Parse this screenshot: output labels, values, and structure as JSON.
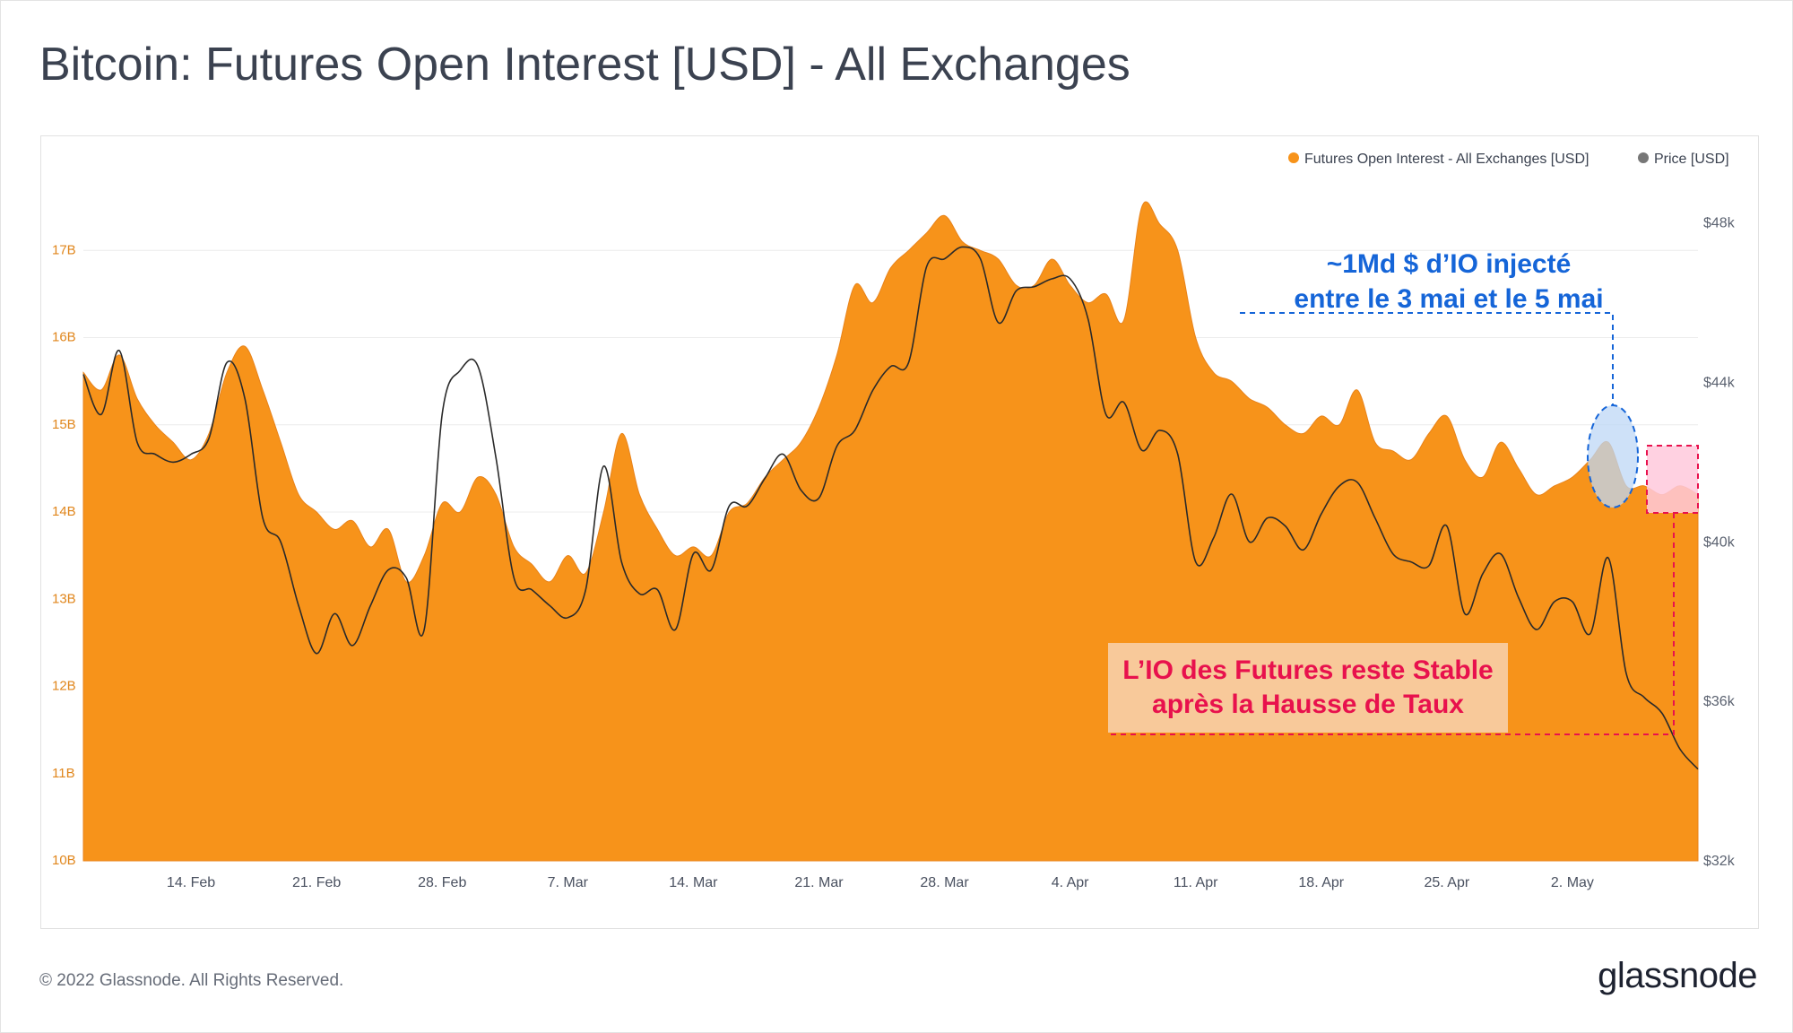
{
  "title": "Bitcoin: Futures Open Interest [USD] - All Exchanges",
  "footer": "© 2022 Glassnode. All Rights Reserved.",
  "brand": "glassnode",
  "colors": {
    "open_interest_fill": "#f7931a",
    "price_line": "#2a2a2a",
    "axis_left": "#e0861c",
    "axis_right": "#5b6270",
    "annotation_blue": "#1565d8",
    "annotation_pink": "#e8114d",
    "pink_box_fill": "#ffc9dc",
    "note_box_fill": "#f8c99a",
    "blue_ellipse_fill": "#bdd7f5"
  },
  "chart_data": {
    "type": "area",
    "x_unit": "date 2022",
    "x_ticks": [
      {
        "x": "2022-02-14",
        "label": "14. Feb"
      },
      {
        "x": "2022-02-21",
        "label": "21. Feb"
      },
      {
        "x": "2022-02-28",
        "label": "28. Feb"
      },
      {
        "x": "2022-03-07",
        "label": "7. Mar"
      },
      {
        "x": "2022-03-14",
        "label": "14. Mar"
      },
      {
        "x": "2022-03-21",
        "label": "21. Mar"
      },
      {
        "x": "2022-03-28",
        "label": "28. Mar"
      },
      {
        "x": "2022-04-04",
        "label": "4. Apr"
      },
      {
        "x": "2022-04-11",
        "label": "11. Apr"
      },
      {
        "x": "2022-04-18",
        "label": "18. Apr"
      },
      {
        "x": "2022-04-25",
        "label": "25. Apr"
      },
      {
        "x": "2022-05-02",
        "label": "2. May"
      }
    ],
    "x_range": [
      "2022-02-08",
      "2022-05-09"
    ],
    "y_left": {
      "min": 10,
      "max": 18,
      "ticks": [
        {
          "value": 10,
          "label": "10B"
        },
        {
          "value": 11,
          "label": "11B"
        },
        {
          "value": 12,
          "label": "12B"
        },
        {
          "value": 13,
          "label": "13B"
        },
        {
          "value": 14,
          "label": "14B"
        },
        {
          "value": 15,
          "label": "15B"
        },
        {
          "value": 16,
          "label": "16B"
        },
        {
          "value": 17,
          "label": "17B"
        }
      ]
    },
    "y_right": {
      "min": 32000,
      "max": 49500,
      "ticks": [
        {
          "value": 32000,
          "label": "$32k"
        },
        {
          "value": 36000,
          "label": "$36k"
        },
        {
          "value": 40000,
          "label": "$40k"
        },
        {
          "value": 44000,
          "label": "$44k"
        },
        {
          "value": 48000,
          "label": "$48k"
        }
      ]
    },
    "grid": true,
    "legend_placement": "top-right",
    "series": [
      {
        "name": "Futures Open Interest - All Exchanges [USD]",
        "axis": "left",
        "type": "area",
        "x": [
          "2022-02-08",
          "2022-02-09",
          "2022-02-10",
          "2022-02-11",
          "2022-02-12",
          "2022-02-13",
          "2022-02-14",
          "2022-02-15",
          "2022-02-16",
          "2022-02-17",
          "2022-02-18",
          "2022-02-19",
          "2022-02-20",
          "2022-02-21",
          "2022-02-22",
          "2022-02-23",
          "2022-02-24",
          "2022-02-25",
          "2022-02-26",
          "2022-02-27",
          "2022-02-28",
          "2022-03-01",
          "2022-03-02",
          "2022-03-03",
          "2022-03-04",
          "2022-03-05",
          "2022-03-06",
          "2022-03-07",
          "2022-03-08",
          "2022-03-09",
          "2022-03-10",
          "2022-03-11",
          "2022-03-12",
          "2022-03-13",
          "2022-03-14",
          "2022-03-15",
          "2022-03-16",
          "2022-03-17",
          "2022-03-18",
          "2022-03-19",
          "2022-03-20",
          "2022-03-21",
          "2022-03-22",
          "2022-03-23",
          "2022-03-24",
          "2022-03-25",
          "2022-03-26",
          "2022-03-27",
          "2022-03-28",
          "2022-03-29",
          "2022-03-30",
          "2022-03-31",
          "2022-04-01",
          "2022-04-02",
          "2022-04-03",
          "2022-04-04",
          "2022-04-05",
          "2022-04-06",
          "2022-04-07",
          "2022-04-08",
          "2022-04-09",
          "2022-04-10",
          "2022-04-11",
          "2022-04-12",
          "2022-04-13",
          "2022-04-14",
          "2022-04-15",
          "2022-04-16",
          "2022-04-17",
          "2022-04-18",
          "2022-04-19",
          "2022-04-20",
          "2022-04-21",
          "2022-04-22",
          "2022-04-23",
          "2022-04-24",
          "2022-04-25",
          "2022-04-26",
          "2022-04-27",
          "2022-04-28",
          "2022-04-29",
          "2022-04-30",
          "2022-05-01",
          "2022-05-02",
          "2022-05-03",
          "2022-05-04",
          "2022-05-05",
          "2022-05-06",
          "2022-05-07",
          "2022-05-08",
          "2022-05-09"
        ],
        "values": [
          15.6,
          15.4,
          15.8,
          15.3,
          15.0,
          14.8,
          14.6,
          14.9,
          15.6,
          15.9,
          15.4,
          14.8,
          14.2,
          14.0,
          13.8,
          13.9,
          13.6,
          13.8,
          13.2,
          13.5,
          14.1,
          14.0,
          14.4,
          14.2,
          13.6,
          13.4,
          13.2,
          13.5,
          13.3,
          14.0,
          14.9,
          14.2,
          13.8,
          13.5,
          13.6,
          13.5,
          14.0,
          14.1,
          14.4,
          14.6,
          14.8,
          15.2,
          15.8,
          16.6,
          16.4,
          16.8,
          17.0,
          17.2,
          17.4,
          17.1,
          17.0,
          16.9,
          16.6,
          16.6,
          16.9,
          16.6,
          16.4,
          16.5,
          16.2,
          17.5,
          17.3,
          17.0,
          16.0,
          15.6,
          15.5,
          15.3,
          15.2,
          15.0,
          14.9,
          15.1,
          15.0,
          15.4,
          14.8,
          14.7,
          14.6,
          14.9,
          15.1,
          14.6,
          14.4,
          14.8,
          14.5,
          14.2,
          14.3,
          14.4,
          14.6,
          14.8,
          14.3,
          14.3,
          14.2,
          14.3,
          14.2
        ]
      },
      {
        "name": "Price [USD]",
        "axis": "right",
        "type": "line",
        "x": [
          "2022-02-08",
          "2022-02-09",
          "2022-02-10",
          "2022-02-11",
          "2022-02-12",
          "2022-02-13",
          "2022-02-14",
          "2022-02-15",
          "2022-02-16",
          "2022-02-17",
          "2022-02-18",
          "2022-02-19",
          "2022-02-20",
          "2022-02-21",
          "2022-02-22",
          "2022-02-23",
          "2022-02-24",
          "2022-02-25",
          "2022-02-26",
          "2022-02-27",
          "2022-02-28",
          "2022-03-01",
          "2022-03-02",
          "2022-03-03",
          "2022-03-04",
          "2022-03-05",
          "2022-03-06",
          "2022-03-07",
          "2022-03-08",
          "2022-03-09",
          "2022-03-10",
          "2022-03-11",
          "2022-03-12",
          "2022-03-13",
          "2022-03-14",
          "2022-03-15",
          "2022-03-16",
          "2022-03-17",
          "2022-03-18",
          "2022-03-19",
          "2022-03-20",
          "2022-03-21",
          "2022-03-22",
          "2022-03-23",
          "2022-03-24",
          "2022-03-25",
          "2022-03-26",
          "2022-03-27",
          "2022-03-28",
          "2022-03-29",
          "2022-03-30",
          "2022-03-31",
          "2022-04-01",
          "2022-04-02",
          "2022-04-03",
          "2022-04-04",
          "2022-04-05",
          "2022-04-06",
          "2022-04-07",
          "2022-04-08",
          "2022-04-09",
          "2022-04-10",
          "2022-04-11",
          "2022-04-12",
          "2022-04-13",
          "2022-04-14",
          "2022-04-15",
          "2022-04-16",
          "2022-04-17",
          "2022-04-18",
          "2022-04-19",
          "2022-04-20",
          "2022-04-21",
          "2022-04-22",
          "2022-04-23",
          "2022-04-24",
          "2022-04-25",
          "2022-04-26",
          "2022-04-27",
          "2022-04-28",
          "2022-04-29",
          "2022-04-30",
          "2022-05-01",
          "2022-05-02",
          "2022-05-03",
          "2022-05-04",
          "2022-05-05",
          "2022-05-06",
          "2022-05-07",
          "2022-05-08",
          "2022-05-09"
        ],
        "values": [
          44200,
          43200,
          44800,
          42500,
          42200,
          42000,
          42200,
          42600,
          44500,
          43600,
          40600,
          40000,
          38400,
          37200,
          38200,
          37400,
          38400,
          39300,
          39100,
          37800,
          43200,
          44300,
          44400,
          42100,
          39100,
          38800,
          38400,
          38100,
          38800,
          41900,
          39500,
          38700,
          38800,
          37800,
          39700,
          39300,
          40900,
          40900,
          41600,
          42200,
          41300,
          41100,
          42400,
          42800,
          43800,
          44400,
          44500,
          46900,
          47100,
          47400,
          47100,
          45500,
          46300,
          46400,
          46600,
          46600,
          45600,
          43200,
          43500,
          42300,
          42800,
          42200,
          39500,
          40100,
          41200,
          40000,
          40600,
          40400,
          39800,
          40700,
          41400,
          41500,
          40600,
          39700,
          39500,
          39400,
          40400,
          38200,
          39200,
          39700,
          38600,
          37800,
          38500,
          38500,
          37700,
          39600,
          36700,
          36100,
          35700,
          34800,
          34300
        ]
      }
    ],
    "annotations": [
      {
        "text_line1": "~1Md $ d’IO injecté",
        "text_line2": "entre le 3 mai et le 5 mai",
        "color": "blue"
      },
      {
        "text_line1": "L’IO des Futures reste Stable",
        "text_line2": "après la Hausse de Taux",
        "color": "pink"
      }
    ]
  }
}
